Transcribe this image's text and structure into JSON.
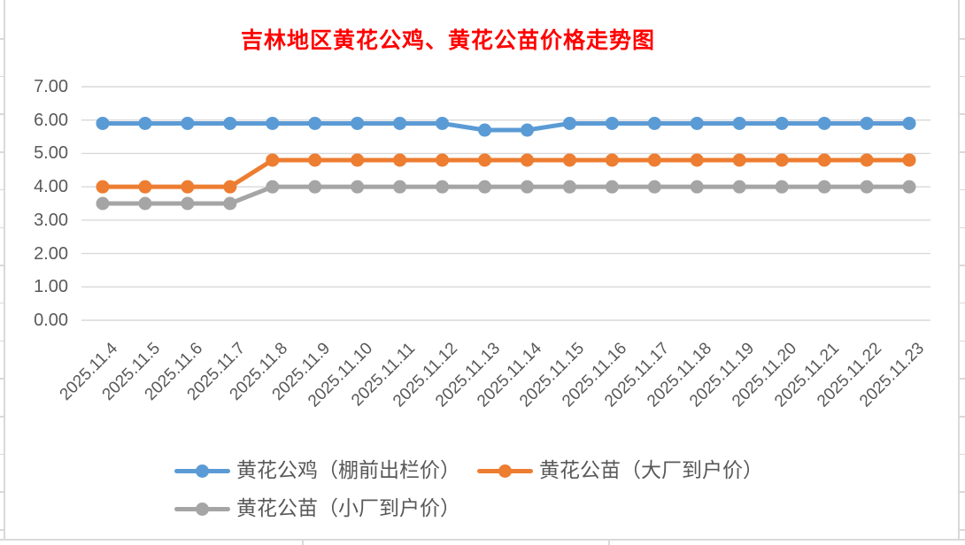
{
  "chart_data": {
    "type": "line",
    "title": "吉林地区黄花公鸡、黄花公苗价格走势图",
    "title_color": "#FF0000",
    "categories": [
      "2025.11.4",
      "2025.11.5",
      "2025.11.6",
      "2025.11.7",
      "2025.11.8",
      "2025.11.9",
      "2025.11.10",
      "2025.11.11",
      "2025.11.12",
      "2025.11.13",
      "2025.11.14",
      "2025.11.15",
      "2025.11.16",
      "2025.11.17",
      "2025.11.18",
      "2025.11.19",
      "2025.11.20",
      "2025.11.21",
      "2025.11.22",
      "2025.11.23"
    ],
    "series": [
      {
        "name": "黄花公鸡（棚前出栏价）",
        "color": "#5B9BD5",
        "values": [
          5.9,
          5.9,
          5.9,
          5.9,
          5.9,
          5.9,
          5.9,
          5.9,
          5.9,
          5.7,
          5.7,
          5.9,
          5.9,
          5.9,
          5.9,
          5.9,
          5.9,
          5.9,
          5.9,
          5.9
        ]
      },
      {
        "name": "黄花公苗（大厂到户价）",
        "color": "#ED7D31",
        "values": [
          4.0,
          4.0,
          4.0,
          4.0,
          4.8,
          4.8,
          4.8,
          4.8,
          4.8,
          4.8,
          4.8,
          4.8,
          4.8,
          4.8,
          4.8,
          4.8,
          4.8,
          4.8,
          4.8,
          4.8
        ]
      },
      {
        "name": "黄花公苗（小厂到户价）",
        "color": "#A5A5A5",
        "values": [
          3.5,
          3.5,
          3.5,
          3.5,
          4.0,
          4.0,
          4.0,
          4.0,
          4.0,
          4.0,
          4.0,
          4.0,
          4.0,
          4.0,
          4.0,
          4.0,
          4.0,
          4.0,
          4.0,
          4.0
        ]
      }
    ],
    "ylim": [
      0,
      7
    ],
    "yticks": [
      "0.00",
      "1.00",
      "2.00",
      "3.00",
      "4.00",
      "5.00",
      "6.00",
      "7.00"
    ],
    "xlabel": "",
    "ylabel": "",
    "grid": true,
    "gridline_color": "#D9D9D9",
    "axis_text_color": "#595959",
    "legend_position": "bottom",
    "legend_rows": [
      [
        0,
        1
      ],
      [
        2
      ]
    ]
  }
}
